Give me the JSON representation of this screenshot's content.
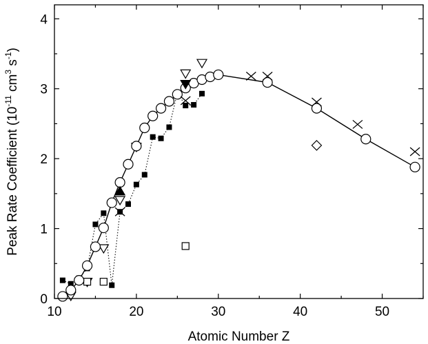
{
  "chart_data": {
    "type": "scatter",
    "xlabel": "Atomic Number Z",
    "ylabel_parts": [
      "Peak Rate Coefficient (10",
      "-11",
      " cm",
      "3",
      " s",
      "-1",
      ")"
    ],
    "xlim": [
      10,
      55
    ],
    "ylim": [
      0,
      4.2
    ],
    "xticks": [
      10,
      20,
      30,
      40,
      50
    ],
    "yticks": [
      0,
      1,
      2,
      3,
      4
    ],
    "grid": false,
    "series": [
      {
        "marker": "circle-open",
        "line": "solid",
        "x": [
          11,
          12,
          13,
          14,
          15,
          16,
          17,
          18,
          19,
          20,
          21,
          22,
          23,
          24,
          25,
          26,
          27,
          28,
          29,
          30,
          36,
          42,
          48,
          54
        ],
        "y": [
          0.03,
          0.12,
          0.26,
          0.47,
          0.74,
          1.01,
          1.37,
          1.66,
          1.92,
          2.18,
          2.44,
          2.61,
          2.72,
          2.82,
          2.92,
          3.01,
          3.08,
          3.13,
          3.17,
          3.2,
          3.09,
          2.72,
          2.28,
          1.88
        ]
      },
      {
        "marker": "square-filled",
        "line": "dotted",
        "x": [
          11,
          12,
          13,
          14,
          15,
          16,
          17,
          18,
          19,
          20,
          21,
          22,
          23,
          24,
          25,
          26,
          27,
          28
        ],
        "y": [
          0.26,
          0.21,
          0.29,
          0.43,
          1.06,
          1.22,
          0.19,
          1.24,
          1.35,
          1.63,
          1.77,
          2.31,
          2.29,
          2.45,
          2.94,
          2.76,
          2.77,
          2.93
        ]
      },
      {
        "marker": "triangle-down-open",
        "line": "none",
        "x": [
          12,
          14,
          16,
          18,
          20,
          26,
          28
        ],
        "y": [
          0.04,
          0.24,
          0.72,
          1.41,
          2.17,
          3.22,
          3.37
        ]
      },
      {
        "marker": "square-open",
        "line": "none",
        "x": [
          14,
          16,
          26
        ],
        "y": [
          0.24,
          0.24,
          0.75
        ]
      },
      {
        "marker": "cross",
        "line": "none",
        "x": [
          18,
          26,
          34,
          36,
          42,
          47,
          54
        ],
        "y": [
          1.24,
          2.83,
          3.18,
          3.18,
          2.81,
          2.49,
          2.1
        ]
      },
      {
        "marker": "triangle-up-filled",
        "line": "none",
        "x": [
          18
        ],
        "y": [
          1.53
        ]
      },
      {
        "marker": "triangle-down-filled",
        "line": "none",
        "x": [
          26
        ],
        "y": [
          3.07
        ]
      },
      {
        "marker": "diamond-open",
        "line": "none",
        "x": [
          42
        ],
        "y": [
          2.19
        ]
      }
    ]
  }
}
